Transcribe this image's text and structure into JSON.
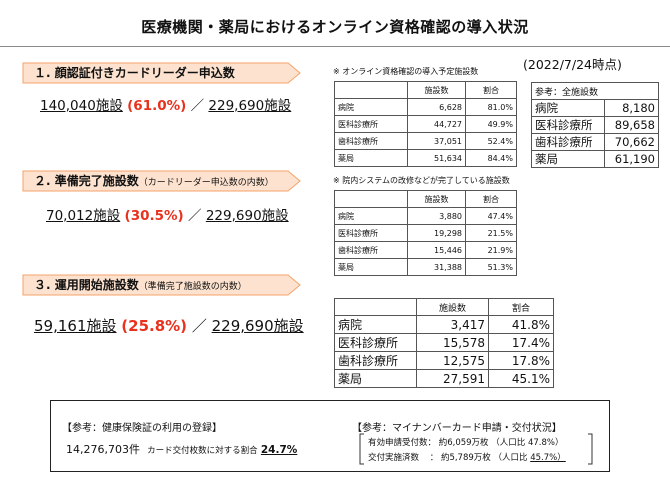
{
  "title": "医療機関・薬局におけるオンライン資格確認の導入状況",
  "date": "(2022/7/24時点)",
  "sections": [
    {
      "label": "１. 顔認証付きカードリーダー申込数",
      "sub": "",
      "count": "140,040施設",
      "pct": "(61.0%)",
      "sep": "／",
      "total": "229,690施設"
    },
    {
      "label": "２. 準備完了施設数",
      "sub": "（カードリーダー申込数の内数）",
      "count": "70,012施設",
      "pct": "(30.5%)",
      "sep": "／",
      "total": "229,690施設"
    },
    {
      "label": "３. 運用開始施設数",
      "sub": "（準備完了施設数の内数）",
      "count": "59,161施設",
      "pct": "(25.8%)",
      "sep": "／",
      "total": "229,690施設"
    }
  ],
  "table1": {
    "note": "※ オンライン資格確認の導入予定施設数",
    "headers": [
      "",
      "施設数",
      "割合"
    ],
    "rows": [
      [
        "病院",
        "6,628",
        "81.0%"
      ],
      [
        "医科診療所",
        "44,727",
        "49.9%"
      ],
      [
        "歯科診療所",
        "37,051",
        "52.4%"
      ],
      [
        "薬局",
        "51,634",
        "84.4%"
      ]
    ]
  },
  "table2": {
    "note": "※ 院内システムの改修などが完了している施設数",
    "headers": [
      "",
      "施設数",
      "割合"
    ],
    "rows": [
      [
        "病院",
        "3,880",
        "47.4%"
      ],
      [
        "医科診療所",
        "19,298",
        "21.5%"
      ],
      [
        "歯科診療所",
        "15,446",
        "21.9%"
      ],
      [
        "薬局",
        "31,388",
        "51.3%"
      ]
    ]
  },
  "table3": {
    "headers": [
      "",
      "施設数",
      "割合"
    ],
    "rows": [
      [
        "病院",
        "3,417",
        "41.8%"
      ],
      [
        "医科診療所",
        "15,578",
        "17.4%"
      ],
      [
        "歯科診療所",
        "12,575",
        "17.8%"
      ],
      [
        "薬局",
        "27,591",
        "45.1%"
      ]
    ]
  },
  "reference": {
    "header": "参考：全施設数",
    "rows": [
      [
        "病院",
        "8,180"
      ],
      [
        "医科診療所",
        "89,658"
      ],
      [
        "歯科診療所",
        "70,662"
      ],
      [
        "薬局",
        "61,190"
      ]
    ]
  },
  "insurance": {
    "heading": "【参考：健康保険証の利用の登録】",
    "count": "14,276,703件",
    "ratio_label": "カード交付枚数に対する割合",
    "ratio": "24.7%"
  },
  "mynumber": {
    "heading": "【参考：マイナンバーカード申請・交付状況】",
    "line1_label": "有効申請受付数：",
    "line1_value": "約6,059万枚",
    "line1_ratio_label": "（人口比",
    "line1_ratio": "47.8%）",
    "line2_label": "交付実施済数",
    "line2_colon": "：",
    "line2_value": "約5,789万枚",
    "line2_ratio_label": "（人口比",
    "line2_ratio": "45.7%）"
  },
  "colors": {
    "accent_red": "#e8321e",
    "arrow_fill": "#fde3cf",
    "arrow_stroke": "#f4a36a"
  }
}
